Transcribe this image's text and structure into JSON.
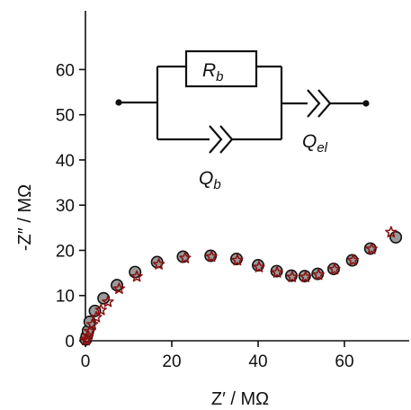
{
  "chart_data": {
    "type": "scatter",
    "title": "",
    "xlabel": "Z′ / MΩ",
    "ylabel": "-Z″ / MΩ",
    "xlim": [
      0,
      75
    ],
    "ylim": [
      0,
      73
    ],
    "x_ticks": [
      0,
      20,
      40,
      60
    ],
    "y_ticks": [
      0,
      10,
      20,
      30,
      40,
      50,
      60
    ],
    "grid": false,
    "legend": "none",
    "series": [
      {
        "marker": "circle",
        "color": "#9a9a9a",
        "edge_color": "#111111",
        "points": [
          [
            0.1,
            0.3
          ],
          [
            0.3,
            1.0
          ],
          [
            0.6,
            2.2
          ],
          [
            1.0,
            4.2
          ],
          [
            2.2,
            6.6
          ],
          [
            4.2,
            9.4
          ],
          [
            7.3,
            12.3
          ],
          [
            11.5,
            15.2
          ],
          [
            16.6,
            17.4
          ],
          [
            22.6,
            18.6
          ],
          [
            29.0,
            18.8
          ],
          [
            35.0,
            18.1
          ],
          [
            40.0,
            16.7
          ],
          [
            44.3,
            15.4
          ],
          [
            47.7,
            14.4
          ],
          [
            50.8,
            14.3
          ],
          [
            53.8,
            14.8
          ],
          [
            57.5,
            15.9
          ],
          [
            61.8,
            17.8
          ],
          [
            66.0,
            20.4
          ],
          [
            71.9,
            22.9
          ]
        ]
      },
      {
        "marker": "star",
        "color": "#8b1010",
        "points": [
          [
            0.1,
            0.1
          ],
          [
            0.3,
            0.4
          ],
          [
            0.6,
            1.1
          ],
          [
            1.0,
            2.1
          ],
          [
            1.6,
            3.6
          ],
          [
            2.5,
            5.2
          ],
          [
            3.6,
            6.8
          ],
          [
            5.2,
            8.6
          ],
          [
            7.8,
            11.5
          ],
          [
            11.9,
            14.2
          ],
          [
            17.0,
            16.9
          ],
          [
            23.1,
            18.3
          ],
          [
            29.2,
            18.6
          ],
          [
            35.2,
            17.8
          ],
          [
            40.2,
            16.3
          ],
          [
            44.4,
            15.1
          ],
          [
            47.9,
            14.1
          ],
          [
            51.0,
            14.1
          ],
          [
            54.0,
            14.6
          ],
          [
            57.7,
            15.8
          ],
          [
            62.0,
            17.8
          ],
          [
            66.3,
            20.3
          ],
          [
            70.8,
            24.0
          ]
        ]
      }
    ],
    "inset": {
      "type": "equivalent-circuit",
      "resistor_label": "R",
      "resistor_sub": "b",
      "bulk_cpe_label": "Q",
      "bulk_cpe_sub": "b",
      "electrode_cpe_label": "Q",
      "electrode_cpe_sub": "el"
    }
  }
}
